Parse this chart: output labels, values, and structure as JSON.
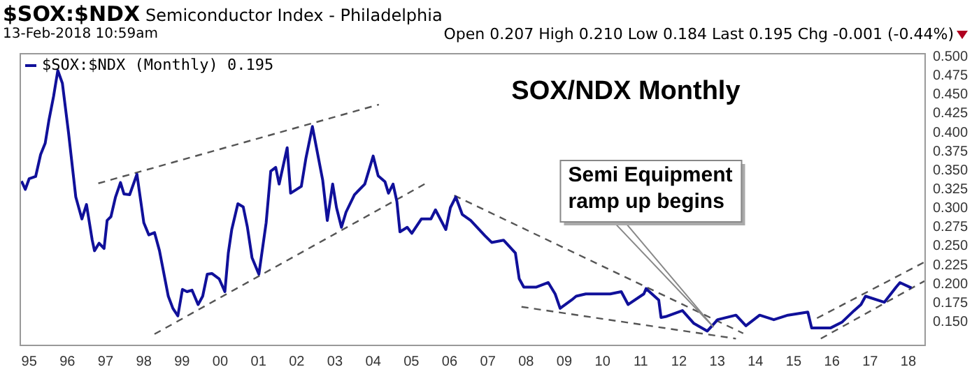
{
  "chart_data": {
    "type": "line",
    "title": "SOX/NDX Monthly",
    "annotations": [
      "$SOX:$NDX",
      "Semiconductor Index - Philadelphia",
      "13-Feb-2018 10:59am",
      "Open 0.207  High 0.210  Low 0.184  Last 0.195  Chg -0.001 (-0.44%)",
      "Semi Equipment ramp up begins"
    ],
    "xlim": [
      1994.75,
      2018.42
    ],
    "xticks": [
      {
        "value": 1995,
        "label": "95"
      },
      {
        "value": 1996,
        "label": "96"
      },
      {
        "value": 1997,
        "label": "97"
      },
      {
        "value": 1998,
        "label": "98"
      },
      {
        "value": 1999,
        "label": "99"
      },
      {
        "value": 2000,
        "label": "00"
      },
      {
        "value": 2001,
        "label": "01"
      },
      {
        "value": 2002,
        "label": "02"
      },
      {
        "value": 2003,
        "label": "03"
      },
      {
        "value": 2004,
        "label": "04"
      },
      {
        "value": 2005,
        "label": "05"
      },
      {
        "value": 2006,
        "label": "06"
      },
      {
        "value": 2007,
        "label": "07"
      },
      {
        "value": 2008,
        "label": "08"
      },
      {
        "value": 2009,
        "label": "09"
      },
      {
        "value": 2010,
        "label": "10"
      },
      {
        "value": 2011,
        "label": "11"
      },
      {
        "value": 2012,
        "label": "12"
      },
      {
        "value": 2013,
        "label": "13"
      },
      {
        "value": 2014,
        "label": "14"
      },
      {
        "value": 2015,
        "label": "15"
      },
      {
        "value": 2016,
        "label": "16"
      },
      {
        "value": 2017,
        "label": "17"
      },
      {
        "value": 2018,
        "label": "18"
      }
    ],
    "ylim": [
      0.12,
      0.505
    ],
    "yticks": [
      {
        "value": 0.15,
        "label": "0.150"
      },
      {
        "value": 0.175,
        "label": "0.175"
      },
      {
        "value": 0.2,
        "label": "0.200"
      },
      {
        "value": 0.225,
        "label": "0.225"
      },
      {
        "value": 0.25,
        "label": "0.250"
      },
      {
        "value": 0.275,
        "label": "0.275"
      },
      {
        "value": 0.3,
        "label": "0.300"
      },
      {
        "value": 0.325,
        "label": "0.325"
      },
      {
        "value": 0.35,
        "label": "0.350"
      },
      {
        "value": 0.375,
        "label": "0.375"
      },
      {
        "value": 0.4,
        "label": "0.400"
      },
      {
        "value": 0.425,
        "label": "0.425"
      },
      {
        "value": 0.45,
        "label": "0.450"
      },
      {
        "value": 0.475,
        "label": "0.475"
      },
      {
        "value": 0.5,
        "label": "0.500"
      }
    ],
    "grid": false,
    "legend": "top left",
    "marker": "none",
    "series": [
      {
        "name": "$SOX:$NDX (Monthly) 0.195",
        "color": "#10109a",
        "line_style": "solid",
        "x": [
          1994.8,
          1994.9,
          1995.0,
          1995.17,
          1995.3,
          1995.42,
          1995.52,
          1995.64,
          1995.75,
          1995.87,
          1996.03,
          1996.22,
          1996.38,
          1996.5,
          1996.65,
          1996.71,
          1996.83,
          1996.96,
          1997.04,
          1997.14,
          1997.26,
          1997.39,
          1997.48,
          1997.63,
          1997.82,
          1998.0,
          1998.13,
          1998.28,
          1998.41,
          1998.64,
          1998.76,
          1998.89,
          1999.01,
          1999.13,
          1999.26,
          1999.42,
          1999.54,
          1999.66,
          1999.78,
          1999.97,
          2000.12,
          2000.21,
          2000.3,
          2000.46,
          2000.6,
          2000.71,
          2000.83,
          2001.01,
          2001.2,
          2001.32,
          2001.45,
          2001.54,
          2001.75,
          2001.84,
          2002.12,
          2002.24,
          2002.41,
          2002.68,
          2002.8,
          2002.94,
          2003.04,
          2003.17,
          2003.29,
          2003.51,
          2003.78,
          2004.0,
          2004.13,
          2004.31,
          2004.4,
          2004.52,
          2004.62,
          2004.7,
          2004.89,
          2005.01,
          2005.26,
          2005.51,
          2005.63,
          2005.9,
          2006.02,
          2006.16,
          2006.33,
          2006.55,
          2006.92,
          2007.1,
          2007.41,
          2007.72,
          2007.82,
          2007.94,
          2008.27,
          2008.58,
          2008.76,
          2008.89,
          2009.19,
          2009.31,
          2009.56,
          2009.93,
          2010.2,
          2010.49,
          2010.67,
          2011.08,
          2011.14,
          2011.47,
          2011.53,
          2011.65,
          2012.09,
          2012.39,
          2012.74,
          2013.01,
          2013.49,
          2013.75,
          2014.11,
          2014.48,
          2014.85,
          2015.37,
          2015.47,
          2015.96,
          2016.27,
          2016.58,
          2016.76,
          2016.88,
          2017.37,
          2017.68,
          2017.78,
          2018.08
        ],
        "values": [
          0.336,
          0.325,
          0.339,
          0.342,
          0.371,
          0.386,
          0.417,
          0.448,
          0.482,
          0.465,
          0.4,
          0.315,
          0.286,
          0.305,
          0.258,
          0.244,
          0.254,
          0.247,
          0.284,
          0.289,
          0.315,
          0.334,
          0.319,
          0.318,
          0.345,
          0.281,
          0.265,
          0.268,
          0.244,
          0.184,
          0.168,
          0.158,
          0.193,
          0.19,
          0.192,
          0.173,
          0.184,
          0.213,
          0.214,
          0.207,
          0.19,
          0.241,
          0.272,
          0.306,
          0.302,
          0.275,
          0.235,
          0.213,
          0.281,
          0.349,
          0.354,
          0.332,
          0.38,
          0.32,
          0.329,
          0.366,
          0.408,
          0.337,
          0.284,
          0.332,
          0.301,
          0.275,
          0.295,
          0.318,
          0.332,
          0.369,
          0.343,
          0.335,
          0.32,
          0.332,
          0.309,
          0.269,
          0.275,
          0.267,
          0.286,
          0.286,
          0.298,
          0.272,
          0.301,
          0.315,
          0.292,
          0.284,
          0.264,
          0.255,
          0.258,
          0.241,
          0.207,
          0.196,
          0.196,
          0.202,
          0.187,
          0.168,
          0.179,
          0.184,
          0.187,
          0.187,
          0.187,
          0.19,
          0.173,
          0.187,
          0.194,
          0.179,
          0.156,
          0.157,
          0.165,
          0.148,
          0.138,
          0.153,
          0.159,
          0.145,
          0.159,
          0.153,
          0.159,
          0.163,
          0.142,
          0.142,
          0.15,
          0.165,
          0.173,
          0.184,
          0.176,
          0.196,
          0.202,
          0.195
        ]
      },
      {
        "type": "line",
        "color": "#555555",
        "line_style": "dashed",
        "x": [
          1996.81,
          2004.15
        ],
        "values": [
          0.333,
          0.437
        ]
      },
      {
        "type": "line",
        "color": "#555555",
        "line_style": "dashed",
        "x": [
          1998.28,
          2005.38
        ],
        "values": [
          0.134,
          0.333
        ]
      },
      {
        "type": "line",
        "color": "#555555",
        "line_style": "dashed",
        "x": [
          2006.12,
          2013.68
        ],
        "values": [
          0.317,
          0.135
        ]
      },
      {
        "type": "line",
        "color": "#555555",
        "line_style": "dashed",
        "x": [
          2007.88,
          2013.49
        ],
        "values": [
          0.17,
          0.128
        ]
      },
      {
        "type": "line",
        "color": "#555555",
        "line_style": "dashed",
        "x": [
          2015.61,
          2018.42
        ],
        "values": [
          0.155,
          0.229
        ]
      },
      {
        "type": "line",
        "color": "#555555",
        "line_style": "dashed",
        "x": [
          2015.71,
          2018.42
        ],
        "values": [
          0.128,
          0.204
        ]
      }
    ]
  }
}
